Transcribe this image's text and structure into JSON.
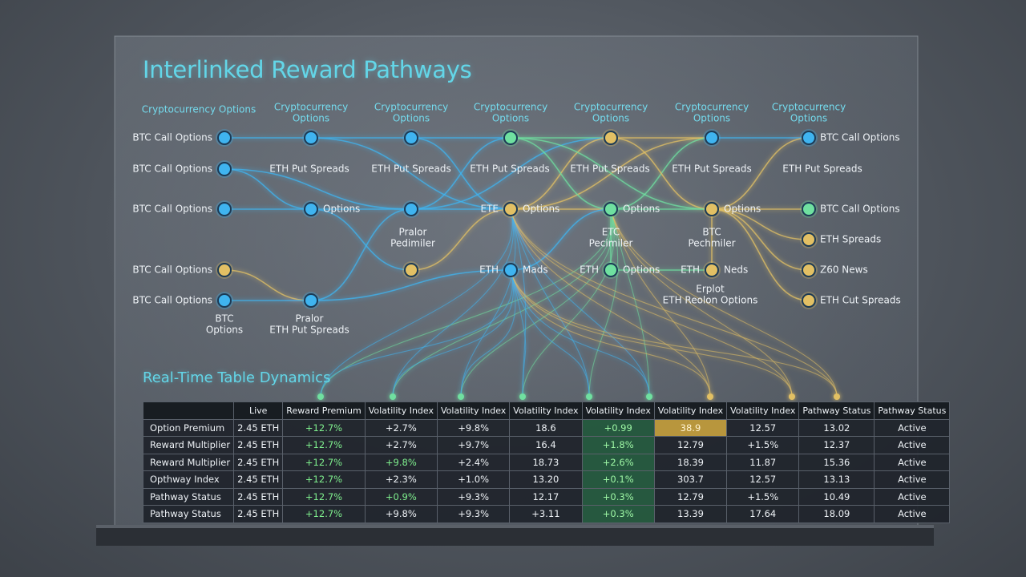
{
  "title": "Interlinked Reward Pathways",
  "diagram": {
    "column_headers": [
      [
        "Cryptocurrency Options"
      ],
      [
        "Cryptocurrency",
        "Options"
      ],
      [
        "Cryptocurrency",
        "Options"
      ],
      [
        "Cryptocurrency",
        "Options"
      ],
      [
        "Cryptocurrency",
        "Options"
      ],
      [
        "Cryptocurrency",
        "Options"
      ],
      [
        "Cryptocurrency",
        "Options"
      ]
    ],
    "labels": [
      [
        "BTC Call Options"
      ],
      [
        "BTC Call Options"
      ],
      [
        "BTC Call Options"
      ],
      [
        "BTC Call Options"
      ],
      [
        "BTC Call Options"
      ],
      [
        "BTC",
        "Options"
      ],
      [
        "ETH Put Spreads"
      ],
      [
        "Options"
      ],
      [
        "Pralor",
        "ETH Put Spreads"
      ],
      [
        "ETH Put Spreads"
      ],
      [
        "Pralor",
        "Pedimiler"
      ],
      [
        "ETH Put Spreads"
      ],
      [
        "ETE"
      ],
      [
        "Options"
      ],
      [
        "ETH"
      ],
      [
        "Mads"
      ],
      [
        "ETH Put Spreads"
      ],
      [
        "Options"
      ],
      [
        "ETC",
        "Pecimiler"
      ],
      [
        "ETH"
      ],
      [
        "Options"
      ],
      [
        "ETH Put Spreads"
      ],
      [
        "Options"
      ],
      [
        "BTC",
        "Pechmiler"
      ],
      [
        "ETH"
      ],
      [
        "Neds"
      ],
      [
        "Erplot",
        "ETH Reolon Options"
      ],
      [
        "BTC Call Options"
      ],
      [
        "ETH Put Spreads"
      ],
      [
        "BTC Call Options"
      ],
      [
        "ETH Spreads"
      ],
      [
        "Z60 News"
      ],
      [
        "ETH Cut Spreads"
      ]
    ]
  },
  "table": {
    "subtitle": "Real-Time Table Dynamics",
    "header": [
      "",
      "Live",
      "Reward Premium",
      "Volatility Index",
      "Volatility Index",
      "Volatility Index",
      "Volatility Index",
      "Volatility Index",
      "Volatility Index",
      "Pathway Status",
      "Pathway Status"
    ],
    "rows": [
      [
        "Option Premium",
        "2.45 ETH",
        "+12.7%",
        "+2.7%",
        "+9.8%",
        "18.6",
        "+0.99",
        "38.9",
        "12.57",
        "13.02",
        "Active"
      ],
      [
        "Reward Multiplier",
        "2.45 ETH",
        "+12.7%",
        "+2.7%",
        "+9.7%",
        "16.4",
        "+1.8%",
        "12.79",
        "+1.5%",
        "12.37",
        "Active"
      ],
      [
        "Reward Multiplier",
        "2.45 ETH",
        "+12.7%",
        "+9.8%",
        "+2.4%",
        "18.73",
        "+2.6%",
        "18.39",
        "11.87",
        "15.36",
        "Active"
      ],
      [
        "Opthway Index",
        "2.45 ETH",
        "+12.7%",
        "+2.3%",
        "+1.0%",
        "13.20",
        "+0.1%",
        "303.7",
        "12.57",
        "13.13",
        "Active"
      ],
      [
        "Pathway Status",
        "2.45 ETH",
        "+12.7%",
        "+0.9%",
        "+9.3%",
        "12.17",
        "+0.3%",
        "12.79",
        "+1.5%",
        "10.49",
        "Active"
      ],
      [
        "Pathway Status",
        "2.45 ETH",
        "+12.7%",
        "+9.8%",
        "+9.3%",
        "+3.11",
        "+0.3%",
        "13.39",
        "17.64",
        "18.09",
        "Active"
      ]
    ]
  }
}
